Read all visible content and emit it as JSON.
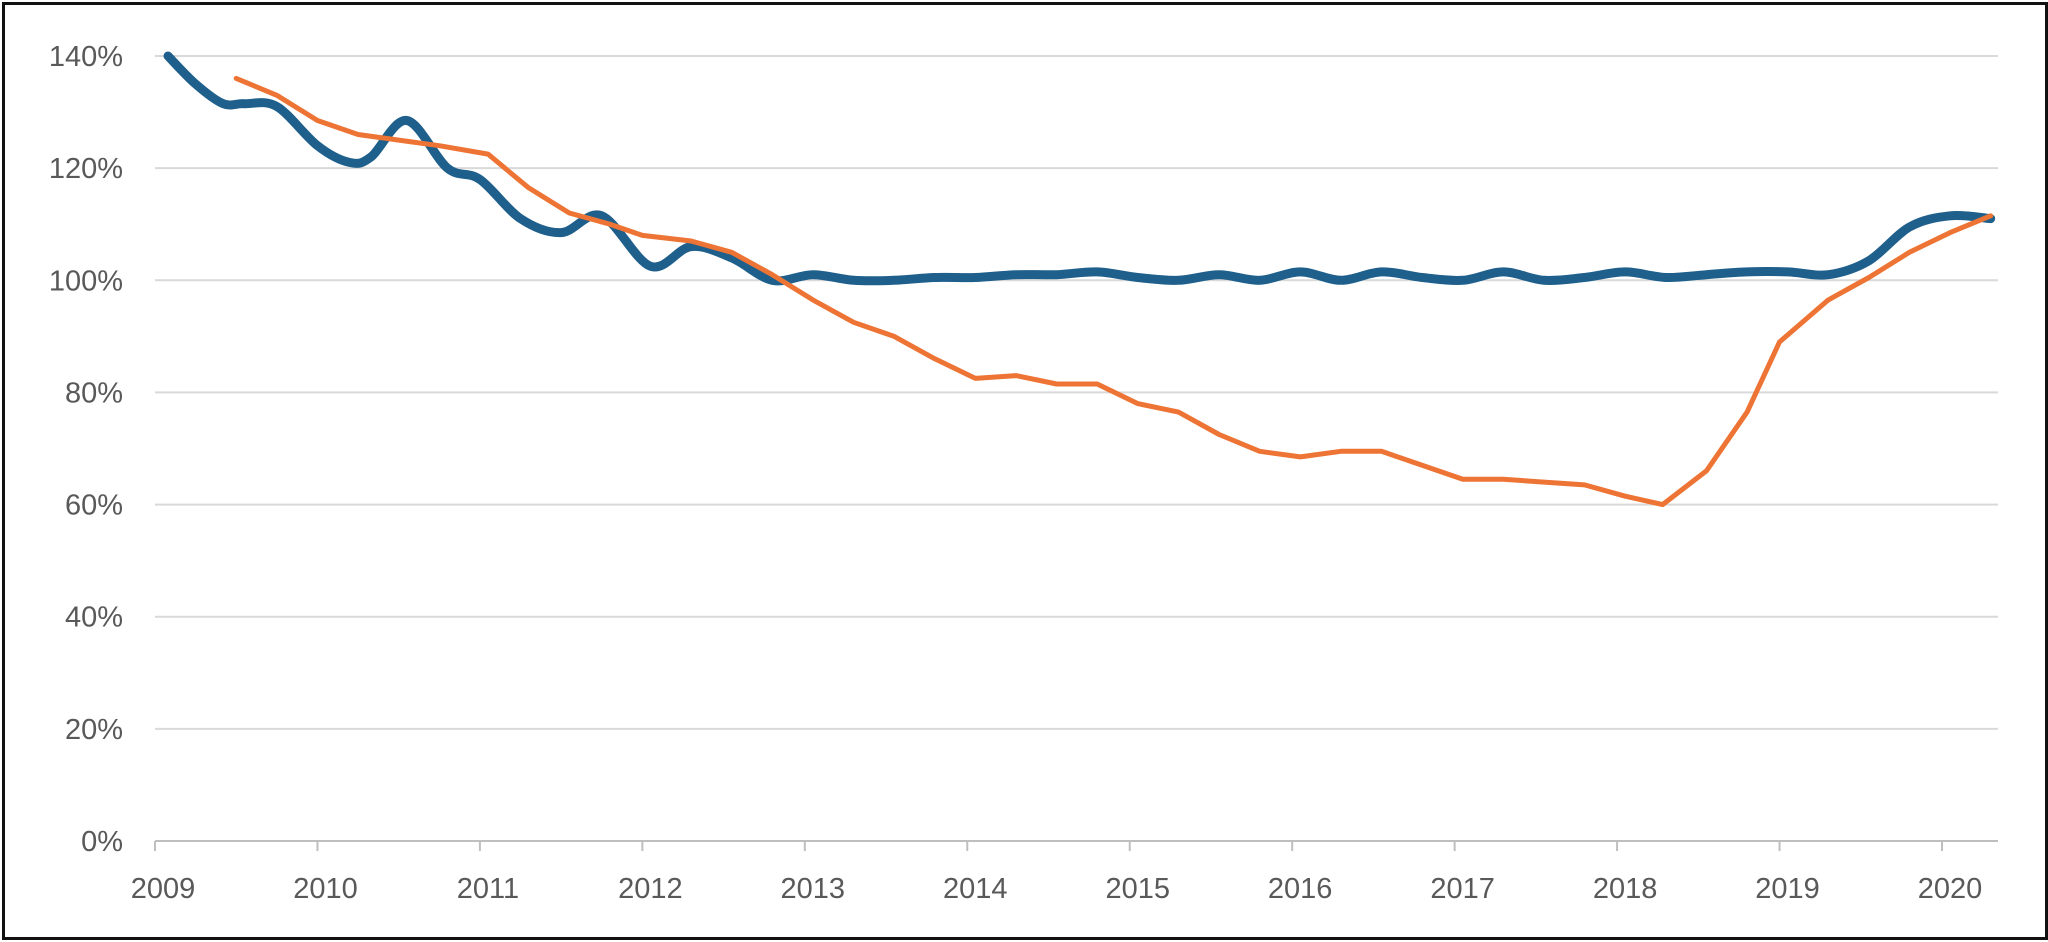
{
  "chart_data": {
    "type": "line",
    "title": "",
    "xlabel": "",
    "ylabel": "",
    "xlim": [
      2009,
      2020.35
    ],
    "ylim": [
      0,
      140
    ],
    "y_ticks": [
      0,
      20,
      40,
      60,
      80,
      100,
      120,
      140
    ],
    "y_tick_labels": [
      "0%",
      "20%",
      "40%",
      "60%",
      "80%",
      "100%",
      "120%",
      "140%"
    ],
    "x_ticks": [
      2009,
      2010,
      2011,
      2012,
      2013,
      2014,
      2015,
      2016,
      2017,
      2018,
      2019,
      2020
    ],
    "x_tick_labels": [
      "2009",
      "2010",
      "2011",
      "2012",
      "2013",
      "2014",
      "2015",
      "2016",
      "2017",
      "2018",
      "2019",
      "2020"
    ],
    "grid": true,
    "legend": "none",
    "series": [
      {
        "color": "#1f5f8b",
        "smooth": true,
        "x": [
          2009.08,
          2009.25,
          2009.42,
          2009.55,
          2009.75,
          2010.0,
          2010.2,
          2010.33,
          2010.55,
          2010.8,
          2011.0,
          2011.25,
          2011.5,
          2011.75,
          2012.05,
          2012.3,
          2012.55,
          2012.8,
          2013.05,
          2013.3,
          2013.55,
          2013.8,
          2014.05,
          2014.3,
          2014.55,
          2014.8,
          2015.05,
          2015.3,
          2015.55,
          2015.8,
          2016.05,
          2016.3,
          2016.55,
          2016.8,
          2017.05,
          2017.3,
          2017.55,
          2017.8,
          2018.05,
          2018.3,
          2018.55,
          2018.8,
          2019.05,
          2019.3,
          2019.55,
          2019.8,
          2020.05,
          2020.3
        ],
        "y": [
          140,
          135,
          131.5,
          131.5,
          131,
          124,
          121,
          122,
          128.5,
          120,
          118,
          111,
          108.5,
          111.5,
          102.5,
          106,
          104,
          100,
          101,
          100,
          100,
          100.5,
          100.5,
          101,
          101,
          101.5,
          100.5,
          100,
          101,
          100,
          101.5,
          100,
          101.5,
          100.5,
          100,
          101.5,
          100,
          100.5,
          101.5,
          100.5,
          101,
          101.5,
          101.5,
          101,
          103.5,
          109.5,
          111.5,
          111
        ]
      },
      {
        "color": "#ed7434",
        "smooth": false,
        "x": [
          2009.5,
          2009.75,
          2010.0,
          2010.25,
          2010.5,
          2010.75,
          2011.05,
          2011.3,
          2011.55,
          2011.8,
          2012.0,
          2012.3,
          2012.55,
          2012.8,
          2013.05,
          2013.3,
          2013.55,
          2013.8,
          2014.05,
          2014.3,
          2014.55,
          2014.8,
          2015.05,
          2015.3,
          2015.55,
          2015.8,
          2016.05,
          2016.3,
          2016.55,
          2016.8,
          2017.05,
          2017.3,
          2017.55,
          2017.8,
          2018.05,
          2018.28,
          2018.55,
          2018.8,
          2019.0,
          2019.3,
          2019.55,
          2019.8,
          2020.05,
          2020.3
        ],
        "y": [
          136,
          133,
          128.5,
          126,
          125,
          124,
          122.5,
          116.5,
          112,
          110,
          108,
          107,
          105,
          101,
          96.5,
          92.5,
          90,
          86,
          82.5,
          83,
          81.5,
          81.5,
          78,
          76.5,
          72.5,
          69.5,
          68.5,
          69.5,
          69.5,
          67,
          64.5,
          64.5,
          64,
          63.5,
          61.5,
          60,
          66,
          76.5,
          89,
          96.5,
          100.5,
          105,
          108.5,
          111.5
        ]
      }
    ]
  }
}
